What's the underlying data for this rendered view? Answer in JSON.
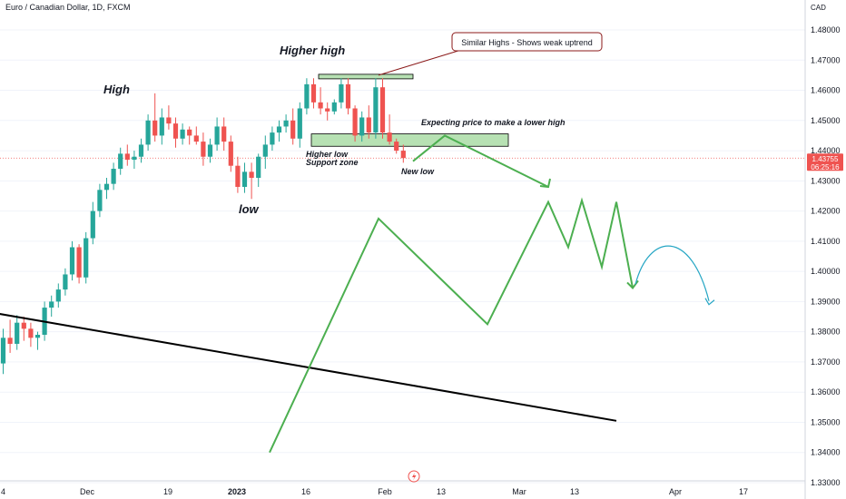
{
  "header": {
    "title": "Euro / Canadian Dollar, 1D, FXCM"
  },
  "price_axis": {
    "currency": "CAD",
    "ticks": [
      "1.48000",
      "1.47000",
      "1.46000",
      "1.45000",
      "1.44000",
      "1.43000",
      "1.42000",
      "1.41000",
      "1.40000",
      "1.39000",
      "1.38000",
      "1.37000",
      "1.36000",
      "1.35000",
      "1.34000",
      "1.33000"
    ],
    "last_price": "1.43755",
    "countdown": "06:25:16"
  },
  "time_axis": {
    "ticks": [
      "4",
      "Dec",
      "19",
      "2023",
      "16",
      "Feb",
      "13",
      "Mar",
      "13",
      "Apr",
      "17"
    ],
    "bold": "2023"
  },
  "annotations": {
    "high": "High",
    "higher_high": "Higher high",
    "low": "low",
    "callout": "Similar Highs - Shows weak uptrend",
    "expecting": "Expecting price to make a lower high",
    "higher_low_1": "Higher low",
    "higher_low_2": "Support zone",
    "new_low": "New low"
  },
  "colors": {
    "up": "#26a69a",
    "down": "#ef5350",
    "projection": "#4caf50",
    "arc": "#26a6c4",
    "zone_fill": "#b7e1b3",
    "callout_border": "#8b1a1a",
    "last_price_bg": "#ef5350",
    "trendline": "#000000"
  },
  "chart_data": {
    "type": "candlestick",
    "symbol": "EUR/CAD",
    "timeframe": "1D",
    "ylim": [
      1.33,
      1.485
    ],
    "last_price": 1.43755,
    "candles": [
      {
        "o": 1.3695,
        "h": 1.381,
        "l": 1.366,
        "c": 1.378
      },
      {
        "o": 1.378,
        "h": 1.384,
        "l": 1.373,
        "c": 1.376
      },
      {
        "o": 1.376,
        "h": 1.3855,
        "l": 1.374,
        "c": 1.383
      },
      {
        "o": 1.383,
        "h": 1.385,
        "l": 1.377,
        "c": 1.381
      },
      {
        "o": 1.381,
        "h": 1.383,
        "l": 1.375,
        "c": 1.378
      },
      {
        "o": 1.378,
        "h": 1.38,
        "l": 1.374,
        "c": 1.379
      },
      {
        "o": 1.379,
        "h": 1.39,
        "l": 1.377,
        "c": 1.388
      },
      {
        "o": 1.388,
        "h": 1.392,
        "l": 1.385,
        "c": 1.39
      },
      {
        "o": 1.39,
        "h": 1.396,
        "l": 1.388,
        "c": 1.394
      },
      {
        "o": 1.394,
        "h": 1.401,
        "l": 1.392,
        "c": 1.399
      },
      {
        "o": 1.399,
        "h": 1.41,
        "l": 1.397,
        "c": 1.408
      },
      {
        "o": 1.408,
        "h": 1.409,
        "l": 1.396,
        "c": 1.398
      },
      {
        "o": 1.398,
        "h": 1.413,
        "l": 1.396,
        "c": 1.411
      },
      {
        "o": 1.411,
        "h": 1.423,
        "l": 1.409,
        "c": 1.42
      },
      {
        "o": 1.42,
        "h": 1.429,
        "l": 1.418,
        "c": 1.427
      },
      {
        "o": 1.427,
        "h": 1.431,
        "l": 1.424,
        "c": 1.429
      },
      {
        "o": 1.429,
        "h": 1.436,
        "l": 1.427,
        "c": 1.434
      },
      {
        "o": 1.434,
        "h": 1.441,
        "l": 1.432,
        "c": 1.439
      },
      {
        "o": 1.439,
        "h": 1.442,
        "l": 1.435,
        "c": 1.437
      },
      {
        "o": 1.437,
        "h": 1.44,
        "l": 1.434,
        "c": 1.438
      },
      {
        "o": 1.438,
        "h": 1.444,
        "l": 1.436,
        "c": 1.442
      },
      {
        "o": 1.442,
        "h": 1.452,
        "l": 1.44,
        "c": 1.45
      },
      {
        "o": 1.45,
        "h": 1.459,
        "l": 1.443,
        "c": 1.445
      },
      {
        "o": 1.445,
        "h": 1.454,
        "l": 1.442,
        "c": 1.451
      },
      {
        "o": 1.451,
        "h": 1.455,
        "l": 1.447,
        "c": 1.449
      },
      {
        "o": 1.449,
        "h": 1.451,
        "l": 1.441,
        "c": 1.444
      },
      {
        "o": 1.444,
        "h": 1.449,
        "l": 1.442,
        "c": 1.447
      },
      {
        "o": 1.447,
        "h": 1.448,
        "l": 1.442,
        "c": 1.445
      },
      {
        "o": 1.445,
        "h": 1.448,
        "l": 1.442,
        "c": 1.443
      },
      {
        "o": 1.443,
        "h": 1.446,
        "l": 1.435,
        "c": 1.438
      },
      {
        "o": 1.438,
        "h": 1.444,
        "l": 1.436,
        "c": 1.442
      },
      {
        "o": 1.442,
        "h": 1.451,
        "l": 1.44,
        "c": 1.448
      },
      {
        "o": 1.448,
        "h": 1.451,
        "l": 1.44,
        "c": 1.443
      },
      {
        "o": 1.443,
        "h": 1.445,
        "l": 1.433,
        "c": 1.435
      },
      {
        "o": 1.435,
        "h": 1.438,
        "l": 1.426,
        "c": 1.428
      },
      {
        "o": 1.428,
        "h": 1.436,
        "l": 1.426,
        "c": 1.433
      },
      {
        "o": 1.433,
        "h": 1.436,
        "l": 1.424,
        "c": 1.431
      },
      {
        "o": 1.431,
        "h": 1.439,
        "l": 1.428,
        "c": 1.438
      },
      {
        "o": 1.438,
        "h": 1.445,
        "l": 1.434,
        "c": 1.442
      },
      {
        "o": 1.442,
        "h": 1.448,
        "l": 1.44,
        "c": 1.446
      },
      {
        "o": 1.446,
        "h": 1.45,
        "l": 1.443,
        "c": 1.448
      },
      {
        "o": 1.448,
        "h": 1.452,
        "l": 1.446,
        "c": 1.45
      },
      {
        "o": 1.45,
        "h": 1.454,
        "l": 1.442,
        "c": 1.444
      },
      {
        "o": 1.444,
        "h": 1.456,
        "l": 1.441,
        "c": 1.454
      },
      {
        "o": 1.454,
        "h": 1.464,
        "l": 1.452,
        "c": 1.462
      },
      {
        "o": 1.462,
        "h": 1.464,
        "l": 1.454,
        "c": 1.456
      },
      {
        "o": 1.456,
        "h": 1.461,
        "l": 1.452,
        "c": 1.454
      },
      {
        "o": 1.454,
        "h": 1.456,
        "l": 1.45,
        "c": 1.453
      },
      {
        "o": 1.453,
        "h": 1.457,
        "l": 1.452,
        "c": 1.456
      },
      {
        "o": 1.456,
        "h": 1.464,
        "l": 1.454,
        "c": 1.462
      },
      {
        "o": 1.462,
        "h": 1.464,
        "l": 1.452,
        "c": 1.454
      },
      {
        "o": 1.454,
        "h": 1.455,
        "l": 1.443,
        "c": 1.445
      },
      {
        "o": 1.445,
        "h": 1.453,
        "l": 1.443,
        "c": 1.451
      },
      {
        "o": 1.451,
        "h": 1.455,
        "l": 1.444,
        "c": 1.446
      },
      {
        "o": 1.446,
        "h": 1.464,
        "l": 1.444,
        "c": 1.461
      },
      {
        "o": 1.461,
        "h": 1.464,
        "l": 1.444,
        "c": 1.446
      },
      {
        "o": 1.446,
        "h": 1.452,
        "l": 1.442,
        "c": 1.443
      },
      {
        "o": 1.443,
        "h": 1.444,
        "l": 1.439,
        "c": 1.44
      },
      {
        "o": 1.44,
        "h": 1.442,
        "l": 1.436,
        "c": 1.43755
      }
    ],
    "support_zone": [
      1.4428,
      1.4445
    ],
    "highs_zone": [
      1.4644,
      1.465
    ],
    "projection": [
      {
        "date": "Jan 4",
        "y": 1.34
      },
      {
        "date": "Jan 21",
        "y": 1.4175
      },
      {
        "date": "Feb 9",
        "y": 1.3825
      },
      {
        "date": "Feb 20",
        "y": 1.423
      },
      {
        "date": "Feb 23",
        "y": 1.408
      },
      {
        "date": "Feb 26",
        "y": 1.4235
      },
      {
        "date": "Mar 2",
        "y": 1.4015
      },
      {
        "date": "Mar 6",
        "y": 1.423
      },
      {
        "date": "Mar 10",
        "y": 1.3945
      }
    ],
    "small_projection": [
      {
        "date": "Feb 7",
        "y": 1.4365
      },
      {
        "date": "Feb 13",
        "y": 1.445
      },
      {
        "date": "Feb 20",
        "y": 1.428
      }
    ],
    "arc": {
      "from": {
        "date": "Mar 10",
        "y": 1.3945
      },
      "peak": {
        "date": "Mar 14",
        "y": 1.4075
      },
      "to": {
        "date": "Mar 18",
        "y": 1.389
      }
    },
    "trendline": [
      {
        "date": "Nov 3",
        "y": 1.386
      },
      {
        "date": "Mar 6",
        "y": 1.3505
      }
    ]
  }
}
